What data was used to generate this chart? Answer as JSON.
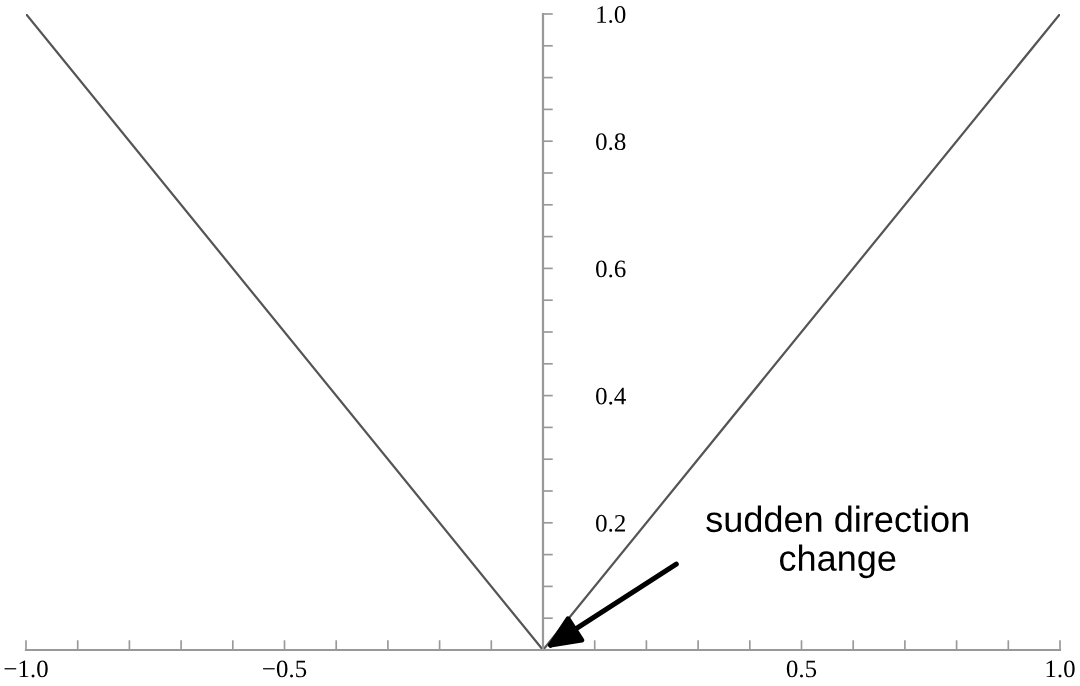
{
  "chart_data": {
    "type": "line",
    "x": [
      -1,
      0,
      1
    ],
    "series": [
      {
        "color": "#555555",
        "values": [
          1,
          0,
          1
        ]
      }
    ],
    "xlim": [
      -1,
      1
    ],
    "ylim": [
      0,
      1
    ],
    "xticks": [
      {
        "value": -1,
        "label": "−1.0"
      },
      {
        "value": -0.9,
        "label": null
      },
      {
        "value": -0.8,
        "label": null
      },
      {
        "value": -0.7,
        "label": null
      },
      {
        "value": -0.6,
        "label": null
      },
      {
        "value": -0.5,
        "label": "−0.5"
      },
      {
        "value": -0.4,
        "label": null
      },
      {
        "value": -0.3,
        "label": null
      },
      {
        "value": -0.2,
        "label": null
      },
      {
        "value": -0.1,
        "label": null
      },
      {
        "value": 0.1,
        "label": null
      },
      {
        "value": 0.2,
        "label": null
      },
      {
        "value": 0.3,
        "label": null
      },
      {
        "value": 0.4,
        "label": null
      },
      {
        "value": 0.5,
        "label": "0.5"
      },
      {
        "value": 0.6,
        "label": null
      },
      {
        "value": 0.7,
        "label": null
      },
      {
        "value": 0.8,
        "label": null
      },
      {
        "value": 0.9,
        "label": null
      },
      {
        "value": 1,
        "label": "1.0"
      }
    ],
    "yticks": [
      {
        "value": 0.05,
        "label": null
      },
      {
        "value": 0.1,
        "label": null
      },
      {
        "value": 0.15,
        "label": null
      },
      {
        "value": 0.2,
        "label": "0.2"
      },
      {
        "value": 0.25,
        "label": null
      },
      {
        "value": 0.3,
        "label": null
      },
      {
        "value": 0.35,
        "label": null
      },
      {
        "value": 0.4,
        "label": "0.4"
      },
      {
        "value": 0.45,
        "label": null
      },
      {
        "value": 0.5,
        "label": null
      },
      {
        "value": 0.55,
        "label": null
      },
      {
        "value": 0.6,
        "label": "0.6"
      },
      {
        "value": 0.65,
        "label": null
      },
      {
        "value": 0.7,
        "label": null
      },
      {
        "value": 0.75,
        "label": null
      },
      {
        "value": 0.8,
        "label": "0.8"
      },
      {
        "value": 0.85,
        "label": null
      },
      {
        "value": 0.9,
        "label": null
      },
      {
        "value": 0.95,
        "label": null
      },
      {
        "value": 1,
        "label": "1.0"
      }
    ],
    "annotations": [
      {
        "text": "sudden direction\nchange",
        "x": 0,
        "y": 0
      }
    ],
    "grid": false,
    "legend": false,
    "marker": "none",
    "line_style": "solid"
  }
}
